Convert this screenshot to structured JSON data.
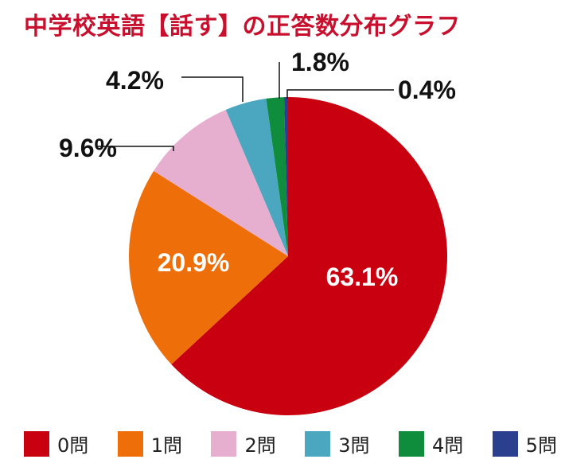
{
  "title": "中学校英語【話す】の正答数分布グラフ",
  "chart_data": {
    "type": "pie",
    "title": "中学校英語【話す】の正答数分布グラフ",
    "slices": [
      {
        "name": "0問",
        "value": 63.1,
        "label": "63.1%",
        "color": "#c8000f"
      },
      {
        "name": "1問",
        "value": 20.9,
        "label": "20.9%",
        "color": "#ee6f0a"
      },
      {
        "name": "2問",
        "value": 9.6,
        "label": "9.6%",
        "color": "#e6afcf"
      },
      {
        "name": "3問",
        "value": 4.2,
        "label": "4.2%",
        "color": "#4aa7bf"
      },
      {
        "name": "4問",
        "value": 1.8,
        "label": "1.8%",
        "color": "#0f8c3c"
      },
      {
        "name": "5問",
        "value": 0.4,
        "label": "0.4%",
        "color": "#2b3f8f"
      }
    ],
    "legend_position": "bottom"
  }
}
